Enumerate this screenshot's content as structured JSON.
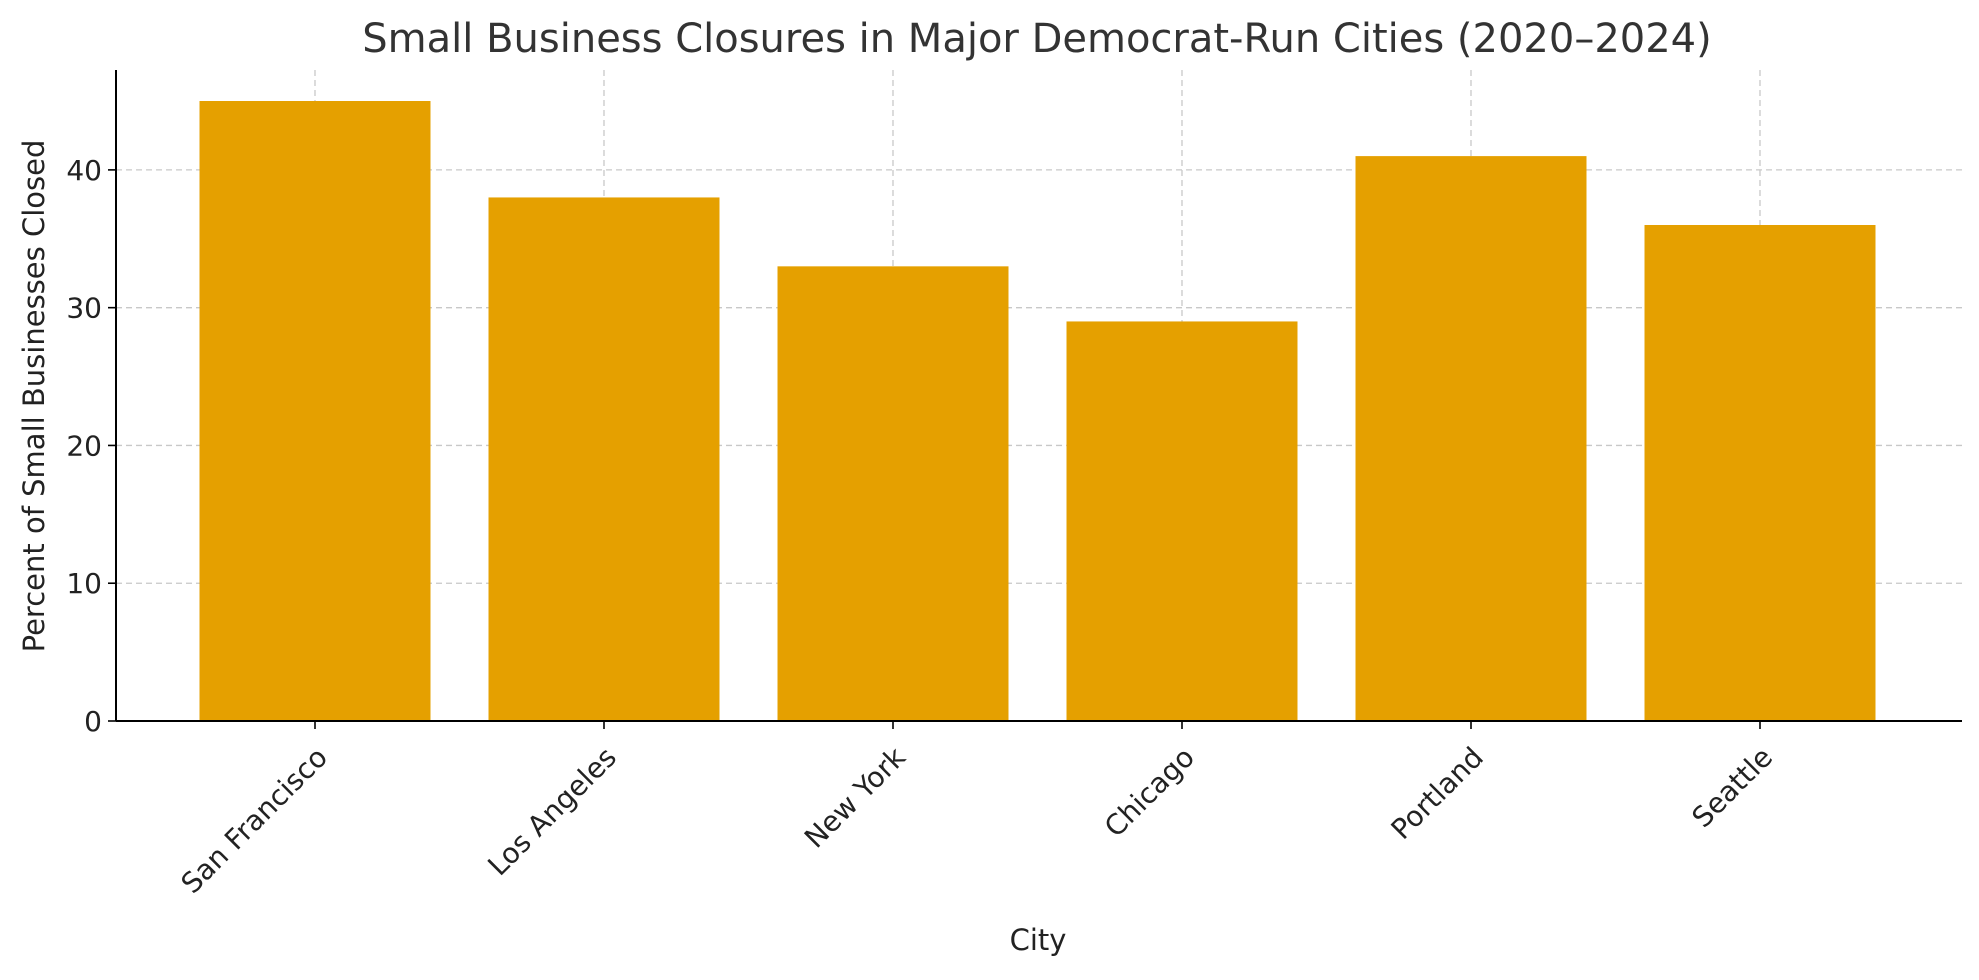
{
  "chart_data": {
    "type": "bar",
    "title": "Small Business Closures in Major Democrat-Run Cities (2020–2024)",
    "xlabel": "City",
    "ylabel": "Percent of Small Businesses Closed",
    "categories": [
      "San Francisco",
      "Los Angeles",
      "New York",
      "Chicago",
      "Portland",
      "Seattle"
    ],
    "values": [
      45,
      38,
      33,
      29,
      41,
      36
    ],
    "ylim": [
      0,
      47.25
    ],
    "yticks": [
      0,
      10,
      20,
      30,
      40
    ],
    "grid": true,
    "legend": "none",
    "bar_color": "#E5A000"
  }
}
